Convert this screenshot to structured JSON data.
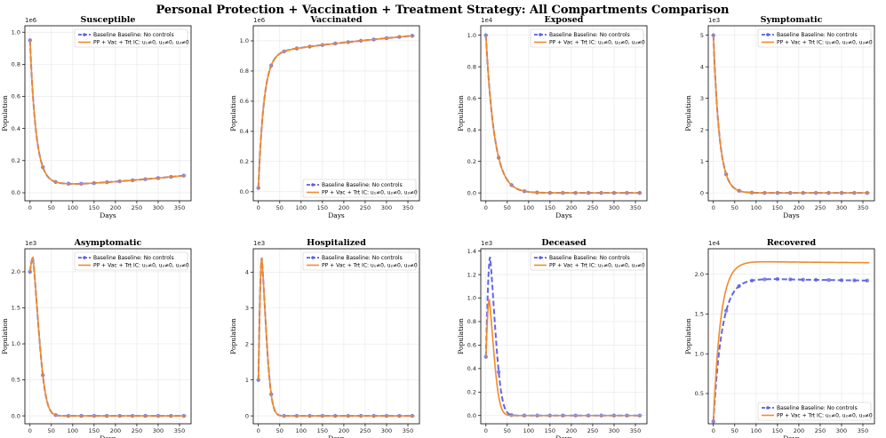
{
  "chart_data": {
    "title": "Personal Protection + Vaccination + Treatment Strategy: All Compartments Comparison",
    "type": "line",
    "xlabel": "Days",
    "ylabel": "Population",
    "legend": {
      "baseline": "Baseline Baseline: No controls",
      "controlled": "PP + Vac + Trt IC: u₁≠0, u₂≠0, u₃≠0"
    },
    "colors": {
      "baseline": "#5a5fe0",
      "controlled": "#ef8a2c"
    },
    "x_ticks": [
      0,
      50,
      100,
      150,
      200,
      250,
      300,
      350
    ],
    "x_marker_days": [
      0,
      30,
      60,
      90,
      120,
      150,
      180,
      210,
      240,
      270,
      300,
      330,
      360
    ],
    "panels": [
      {
        "title": "Susceptible",
        "multiplier": "1e6",
        "scale": 1000000,
        "ylim": [
          -0.05,
          1.04
        ],
        "yticks": [
          0.0,
          0.2,
          0.4,
          0.6,
          0.8,
          1.0
        ],
        "ytick_labels": [
          "0.0",
          "0.2",
          "0.4",
          "0.6",
          "0.8",
          "1.0"
        ],
        "legend_loc": "upper-right",
        "baseline": {
          "kind": "decay_drift",
          "start": 950000,
          "floor": 55000,
          "tau": 14,
          "end": 108000,
          "drift_start": 110
        },
        "controlled": {
          "kind": "decay_drift",
          "start": 950000,
          "floor": 55000,
          "tau": 14,
          "end": 108000,
          "drift_start": 110
        }
      },
      {
        "title": "Vaccinated",
        "multiplier": "1e6",
        "scale": 1000000,
        "ylim": [
          -0.06,
          1.1
        ],
        "yticks": [
          0.0,
          0.2,
          0.4,
          0.6,
          0.8,
          1.0
        ],
        "ytick_labels": [
          "0.0",
          "0.2",
          "0.4",
          "0.6",
          "0.8",
          "1.0"
        ],
        "legend_loc": "lower-right",
        "baseline": {
          "kind": "rise_drift",
          "start": 25000,
          "plateau": 900000,
          "tau": 13,
          "end": 1035000,
          "drift_start": 0
        },
        "controlled": {
          "kind": "rise_drift",
          "start": 25000,
          "plateau": 900000,
          "tau": 13,
          "end": 1035000,
          "drift_start": 0
        }
      },
      {
        "title": "Exposed",
        "multiplier": "1e4",
        "scale": 10000,
        "ylim": [
          -0.05,
          1.06
        ],
        "yticks": [
          0.0,
          0.2,
          0.4,
          0.6,
          0.8,
          1.0
        ],
        "ytick_labels": [
          "0.0",
          "0.2",
          "0.4",
          "0.6",
          "0.8",
          "1.0"
        ],
        "legend_loc": "upper-right",
        "baseline": {
          "kind": "decay",
          "start": 10000,
          "floor": 0,
          "tau": 20
        },
        "controlled": {
          "kind": "decay",
          "start": 10000,
          "floor": 0,
          "tau": 20
        }
      },
      {
        "title": "Symptomatic",
        "multiplier": "1e3",
        "scale": 1000,
        "ylim": [
          -0.25,
          5.3
        ],
        "yticks": [
          0,
          1,
          2,
          3,
          4,
          5
        ],
        "ytick_labels": [
          "0",
          "1",
          "2",
          "3",
          "4",
          "5"
        ],
        "legend_loc": "upper-right",
        "baseline": {
          "kind": "decay",
          "start": 5000,
          "floor": 0,
          "tau": 14
        },
        "controlled": {
          "kind": "decay",
          "start": 5000,
          "floor": 0,
          "tau": 14
        }
      },
      {
        "title": "Asymptomatic",
        "multiplier": "1e3",
        "scale": 1000,
        "ylim": [
          -0.11,
          2.32
        ],
        "yticks": [
          0.0,
          0.5,
          1.0,
          1.5,
          2.0
        ],
        "ytick_labels": [
          "0.0",
          "0.5",
          "1.0",
          "1.5",
          "2.0"
        ],
        "legend_loc": "upper-right",
        "baseline": {
          "kind": "bump",
          "start": 2000,
          "peak": 2200,
          "peak_day": 7,
          "tau": 20
        },
        "controlled": {
          "kind": "bump",
          "start": 2000,
          "peak": 2200,
          "peak_day": 7,
          "tau": 20
        }
      },
      {
        "title": "Hospitalized",
        "multiplier": "1e3",
        "scale": 1000,
        "ylim": [
          -0.22,
          4.65
        ],
        "yticks": [
          0,
          1,
          2,
          3,
          4
        ],
        "ytick_labels": [
          "0",
          "1",
          "2",
          "3",
          "4"
        ],
        "legend_loc": "upper-right",
        "baseline": {
          "kind": "bump",
          "start": 1000,
          "peak": 4400,
          "peak_day": 8,
          "tau": 15
        },
        "controlled": {
          "kind": "bump",
          "start": 1000,
          "peak": 4400,
          "peak_day": 8,
          "tau": 15
        }
      },
      {
        "title": "Deceased",
        "multiplier": "1e3",
        "scale": 1000,
        "ylim": [
          -0.07,
          1.42
        ],
        "yticks": [
          0.0,
          0.2,
          0.4,
          0.6,
          0.8,
          1.0,
          1.2,
          1.4
        ],
        "ytick_labels": [
          "0.0",
          "0.2",
          "0.4",
          "0.6",
          "0.8",
          "1.0",
          "1.2",
          "1.4"
        ],
        "legend_loc": "upper-right",
        "baseline": {
          "kind": "bump",
          "start": 500,
          "peak": 1350,
          "peak_day": 10,
          "tau": 18
        },
        "controlled": {
          "kind": "bump",
          "start": 500,
          "peak": 990,
          "peak_day": 8,
          "tau": 16
        }
      },
      {
        "title": "Recovered",
        "multiplier": "1e4",
        "scale": 10000,
        "ylim": [
          0.12,
          2.32
        ],
        "yticks": [
          0.5,
          1.0,
          1.5,
          2.0
        ],
        "ytick_labels": [
          "0.5",
          "1.0",
          "1.5",
          "2.0"
        ],
        "legend_loc": "lower-right",
        "baseline": {
          "kind": "rise_drift",
          "start": 1500,
          "plateau": 19400,
          "tau": 20,
          "end": 19200,
          "drift_start": 150
        },
        "controlled": {
          "kind": "rise_drift",
          "start": 1500,
          "plateau": 21600,
          "tau": 17,
          "end": 21450,
          "drift_start": 100
        }
      }
    ]
  }
}
